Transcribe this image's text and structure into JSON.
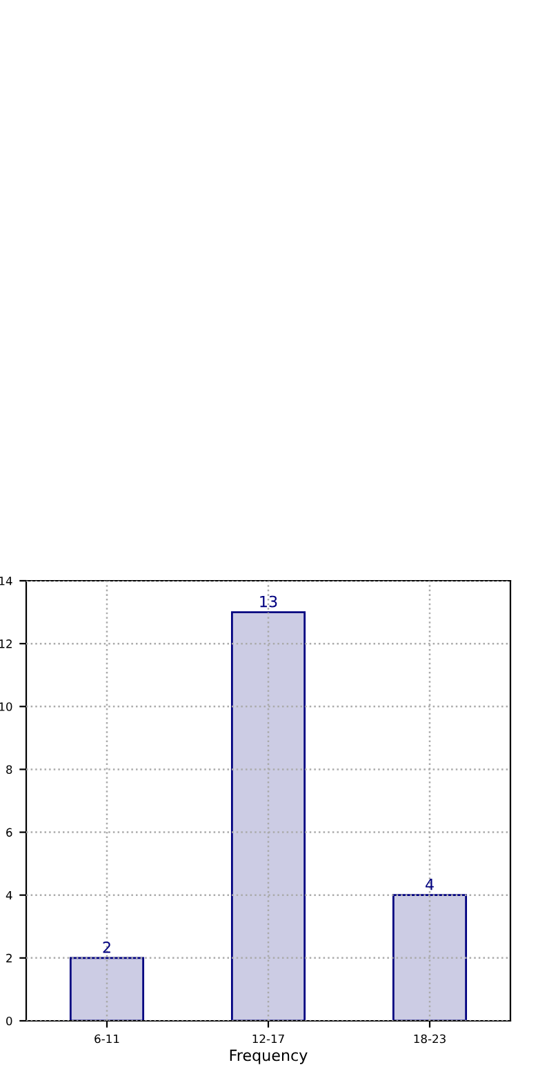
{
  "chart_data": {
    "type": "bar",
    "xlabel": "Frequency",
    "categories": [
      "6-11",
      "12-17",
      "18-23"
    ],
    "values": [
      2,
      13,
      4
    ],
    "color": "#ccccE4",
    "ylim": [
      0,
      14
    ],
    "yticks": [
      0,
      2,
      4,
      6,
      8,
      10,
      12,
      14
    ],
    "grid": true,
    "data_labels": true
  }
}
